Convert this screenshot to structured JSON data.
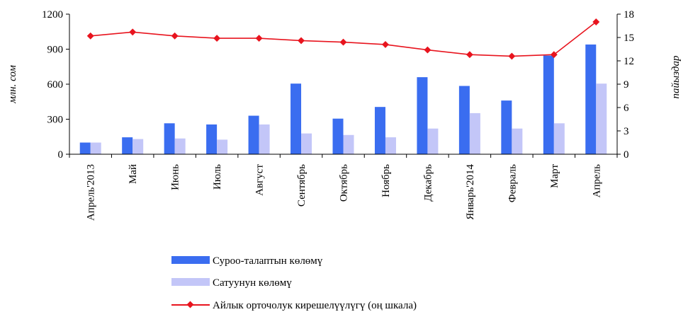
{
  "chart_data": {
    "type": "bar",
    "categories": [
      "Апрель'2013",
      "Май",
      "Июнь",
      "Июль",
      "Август",
      "Сентябрь",
      "Октябрь",
      "Ноябрь",
      "Декабрь",
      "Январь'2014",
      "Февраль",
      "Март",
      "Апрель"
    ],
    "series": [
      {
        "name": "Суроо-талаптын көлөмү",
        "type": "bar",
        "axis": "left",
        "color": "#3a6df0",
        "values": [
          100,
          145,
          265,
          255,
          330,
          605,
          305,
          405,
          660,
          585,
          460,
          845,
          940
        ]
      },
      {
        "name": "Сатуунун көлөмү",
        "type": "bar",
        "axis": "left",
        "color": "#c3c6f8",
        "values": [
          100,
          130,
          135,
          125,
          255,
          178,
          165,
          145,
          220,
          352,
          220,
          265,
          605
        ]
      },
      {
        "name": "Айлык орточолук кирешелүүлүгү (оң шкала)",
        "type": "line",
        "axis": "right",
        "color": "#e8141e",
        "marker": "diamond",
        "values": [
          15.2,
          15.7,
          15.2,
          14.9,
          14.9,
          14.6,
          14.4,
          14.1,
          13.4,
          12.8,
          12.6,
          12.8,
          17.0
        ]
      }
    ],
    "ylabel": "млн. сом",
    "ylabel_right": "пайыздар",
    "ylim": [
      0,
      1200
    ],
    "yticks": [
      0,
      300,
      600,
      900,
      1200
    ],
    "ylim_right": [
      0,
      18
    ],
    "yticks_right": [
      0,
      3,
      6,
      9,
      12,
      15,
      18
    ],
    "grid": false,
    "legend_position": "bottom"
  }
}
